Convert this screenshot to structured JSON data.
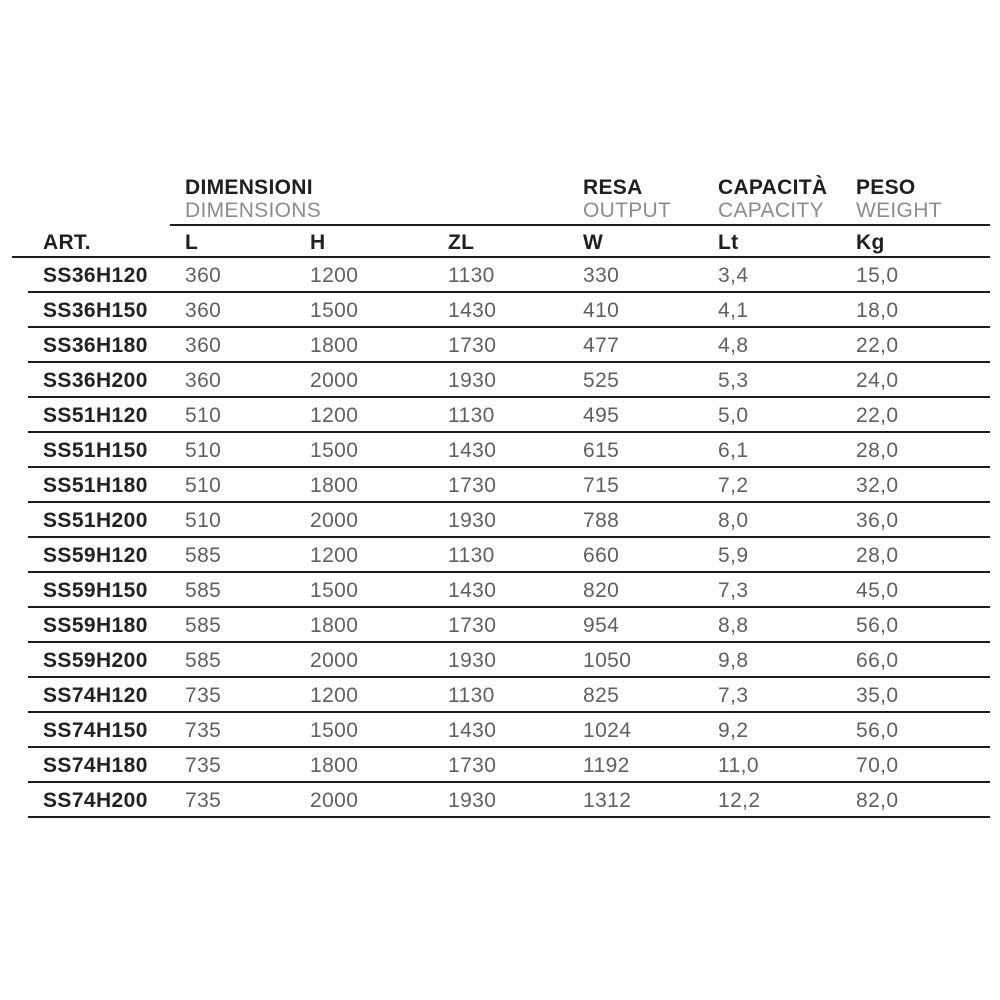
{
  "table": {
    "group_headers": {
      "dimensions": {
        "primary": "DIMENSIONI",
        "secondary": "DIMENSIONS"
      },
      "output": {
        "primary": "RESA",
        "secondary": "OUTPUT"
      },
      "capacity": {
        "primary": "CAPACITÀ",
        "secondary": "CAPACITY"
      },
      "weight": {
        "primary": "PESO",
        "secondary": "WEIGHT"
      }
    },
    "column_headers": {
      "art": "ART.",
      "l": "L",
      "h": "H",
      "zl": "ZL",
      "w": "W",
      "lt": "Lt",
      "kg": "Kg"
    },
    "rows": [
      [
        "SS36H120",
        "360",
        "1200",
        "1130",
        "330",
        "3,4",
        "15,0"
      ],
      [
        "SS36H150",
        "360",
        "1500",
        "1430",
        "410",
        "4,1",
        "18,0"
      ],
      [
        "SS36H180",
        "360",
        "1800",
        "1730",
        "477",
        "4,8",
        "22,0"
      ],
      [
        "SS36H200",
        "360",
        "2000",
        "1930",
        "525",
        "5,3",
        "24,0"
      ],
      [
        "SS51H120",
        "510",
        "1200",
        "1130",
        "495",
        "5,0",
        "22,0"
      ],
      [
        "SS51H150",
        "510",
        "1500",
        "1430",
        "615",
        "6,1",
        "28,0"
      ],
      [
        "SS51H180",
        "510",
        "1800",
        "1730",
        "715",
        "7,2",
        "32,0"
      ],
      [
        "SS51H200",
        "510",
        "2000",
        "1930",
        "788",
        "8,0",
        "36,0"
      ],
      [
        "SS59H120",
        "585",
        "1200",
        "1130",
        "660",
        "5,9",
        "28,0"
      ],
      [
        "SS59H150",
        "585",
        "1500",
        "1430",
        "820",
        "7,3",
        "45,0"
      ],
      [
        "SS59H180",
        "585",
        "1800",
        "1730",
        "954",
        "8,8",
        "56,0"
      ],
      [
        "SS59H200",
        "585",
        "2000",
        "1930",
        "1050",
        "9,8",
        "66,0"
      ],
      [
        "SS74H120",
        "735",
        "1200",
        "1130",
        "825",
        "7,3",
        "35,0"
      ],
      [
        "SS74H150",
        "735",
        "1500",
        "1430",
        "1024",
        "9,2",
        "56,0"
      ],
      [
        "SS74H180",
        "735",
        "1800",
        "1730",
        "1192",
        "11,0",
        "70,0"
      ],
      [
        "SS74H200",
        "735",
        "2000",
        "1930",
        "1312",
        "12,2",
        "82,0"
      ]
    ],
    "colors": {
      "text_dark": "#1f1f1f",
      "text_data_gray": "#606060",
      "text_secondary_gray": "#8c8c8c",
      "line": "#1c1c1c",
      "background": "#ffffff"
    }
  }
}
